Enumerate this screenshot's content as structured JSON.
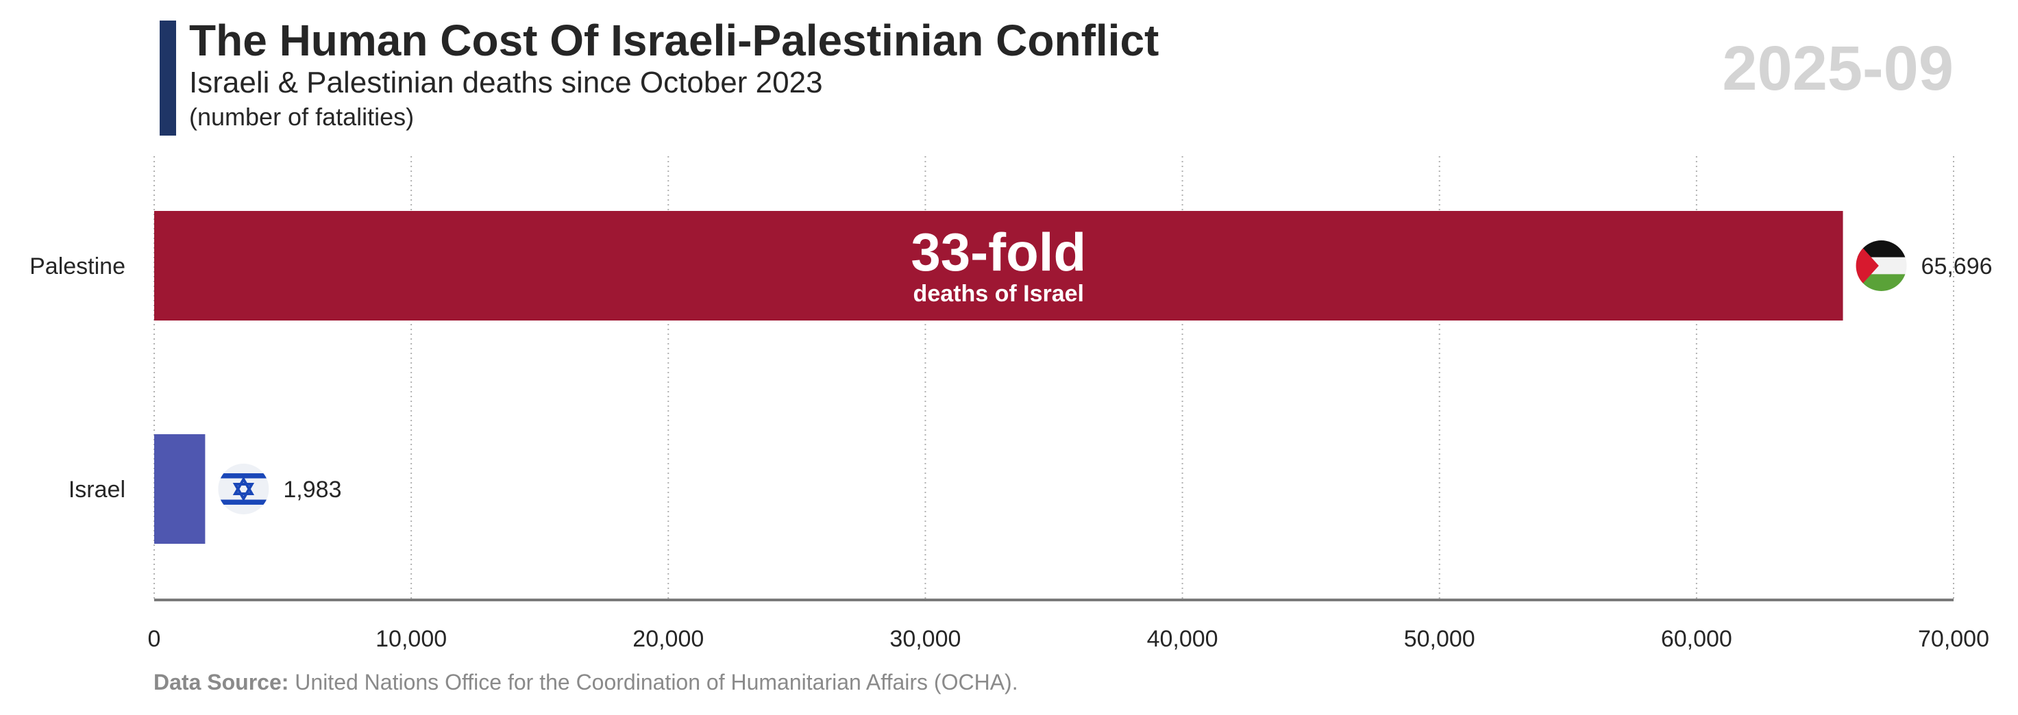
{
  "header": {
    "title": "The Human Cost Of Israeli-Palestinian Conflict",
    "subtitle": "Israeli & Palestinian deaths since October 2023",
    "unit_note": "(number of fatalities)",
    "period": "2025-09"
  },
  "source": {
    "label": "Data Source:",
    "text": "United Nations Office for the Coordination of Humanitarian Affairs (OCHA)."
  },
  "colors": {
    "accent": "#1f3566",
    "palestine_bar": "#9e1733",
    "israel_bar": "#4f57b0",
    "period_text": "#d4d4d4"
  },
  "chart_data": {
    "type": "bar",
    "orientation": "horizontal",
    "categories": [
      "Palestine",
      "Israel"
    ],
    "values": [
      65696,
      1983
    ],
    "value_labels": [
      "65,696",
      "1,983"
    ],
    "flag_icons": [
      "palestine-flag-icon",
      "israel-flag-icon"
    ],
    "xlim": [
      0,
      70000
    ],
    "xticks": [
      0,
      10000,
      20000,
      30000,
      40000,
      50000,
      60000,
      70000
    ],
    "xtick_labels": [
      "0",
      "10,000",
      "20,000",
      "30,000",
      "40,000",
      "50,000",
      "60,000",
      "70,000"
    ],
    "grid": "vertical dotted",
    "annotation": {
      "main": "33-fold",
      "sub": "deaths of Israel"
    }
  }
}
